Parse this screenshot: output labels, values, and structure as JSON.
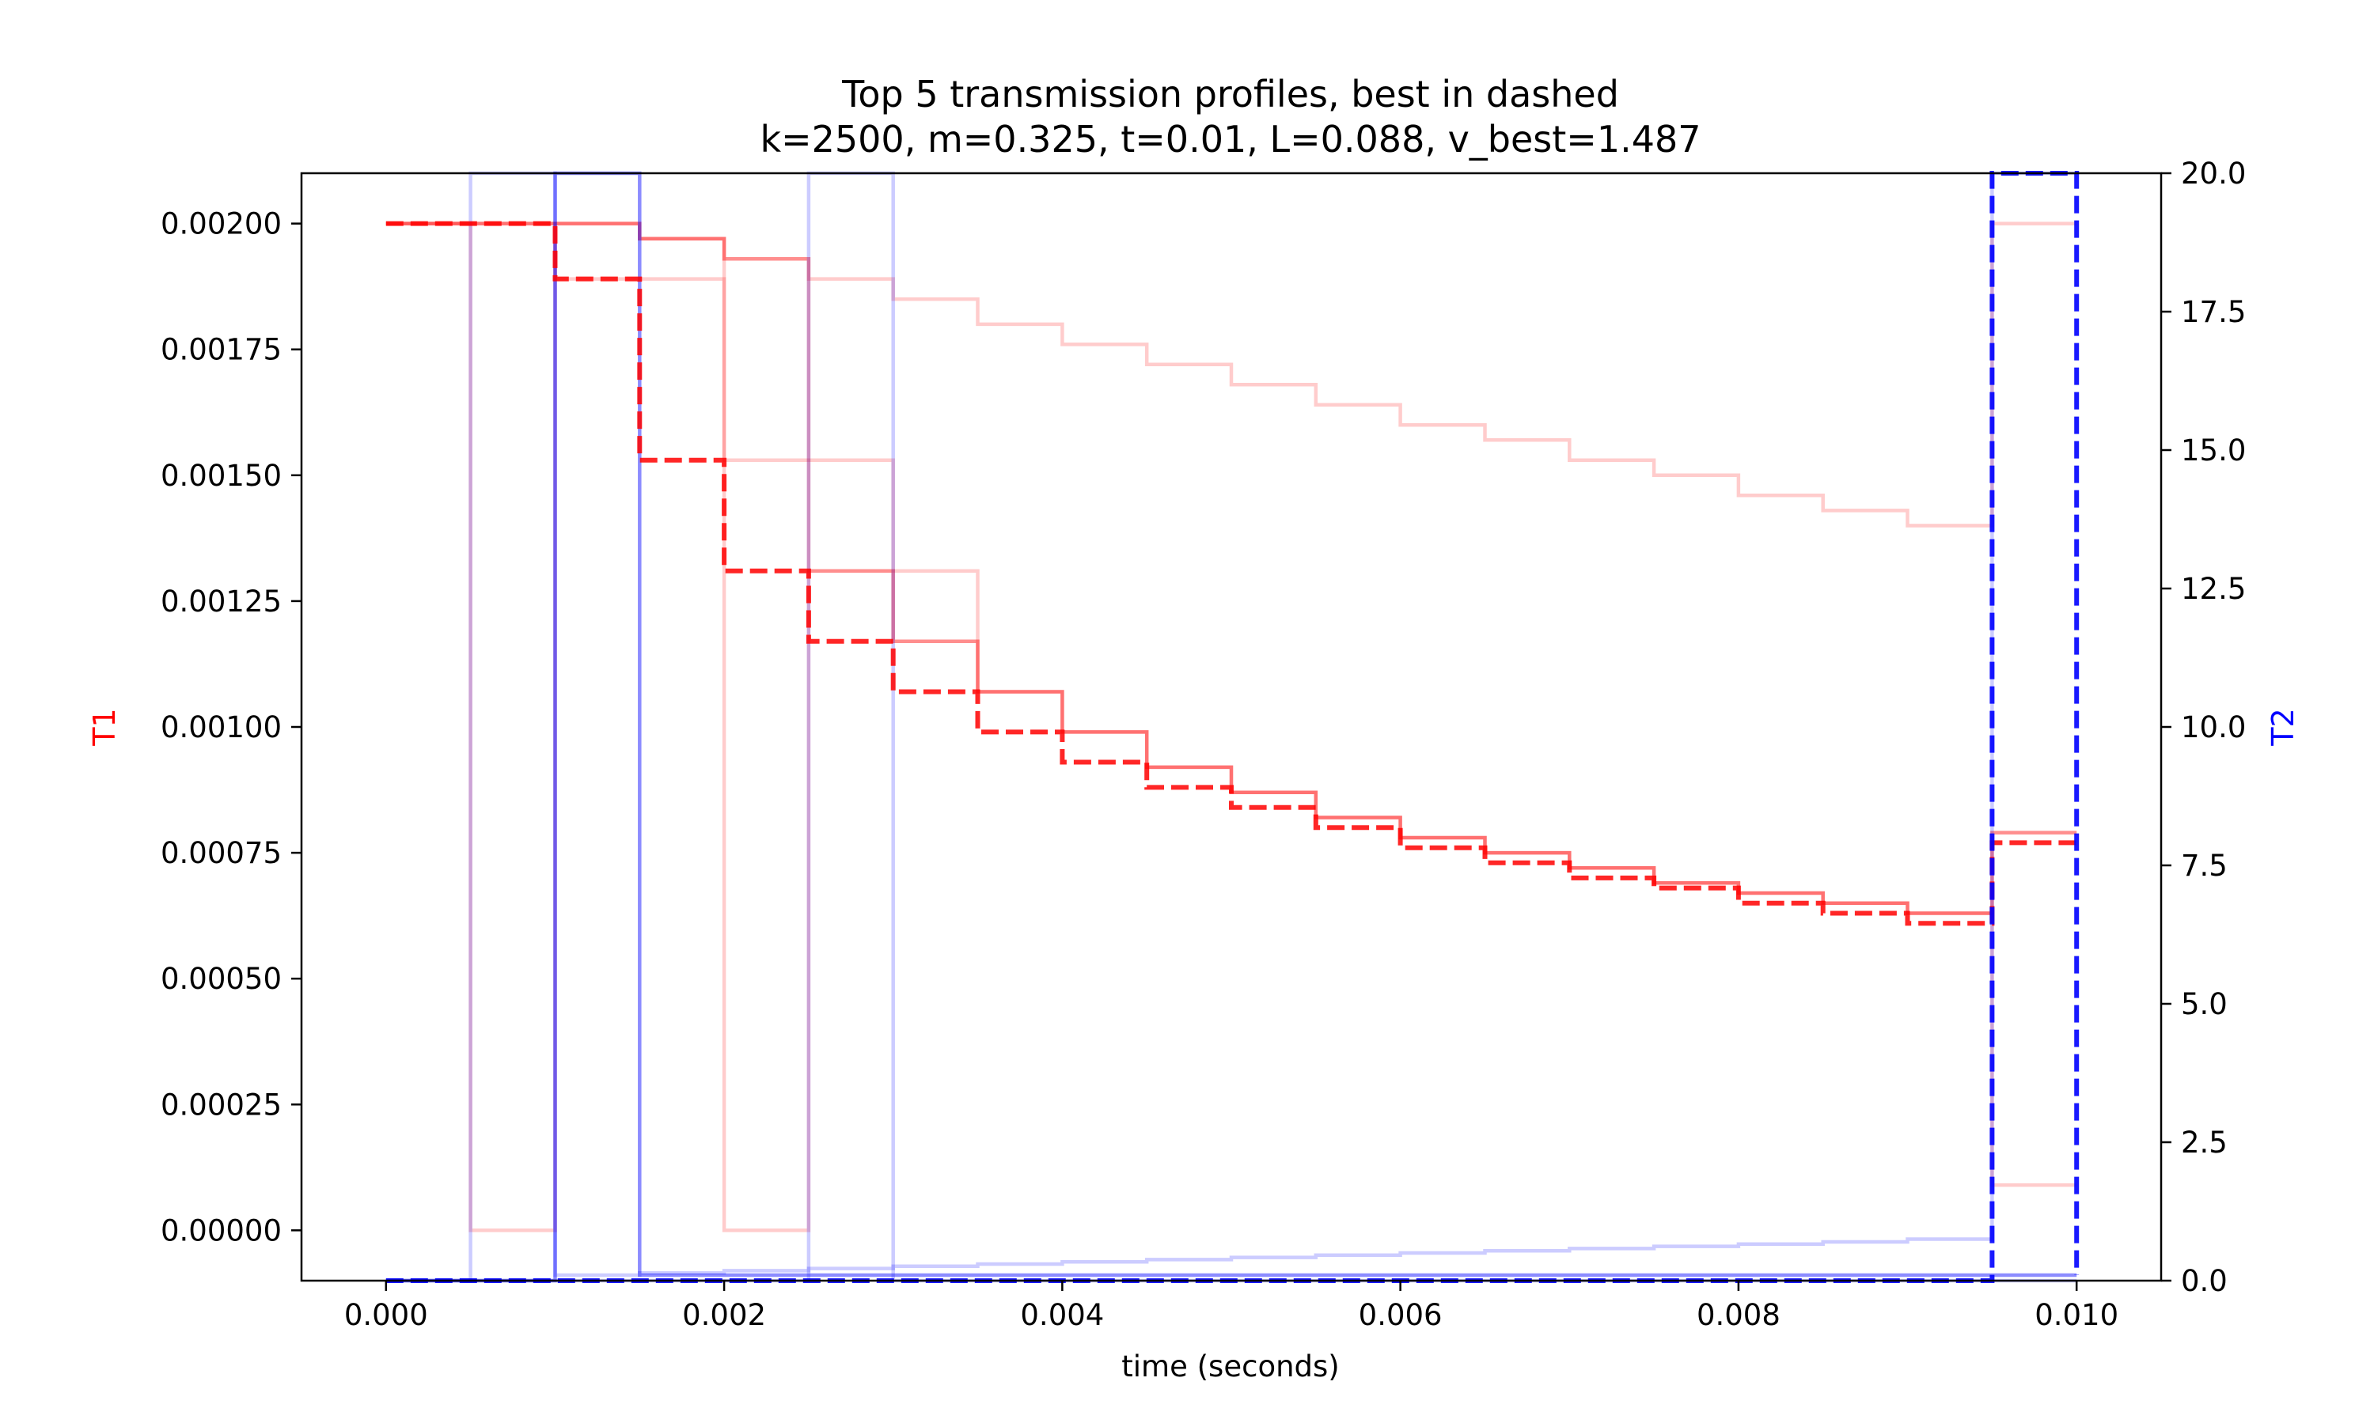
{
  "chart_data": {
    "type": "line",
    "title": "Top 5 transmission profiles, best in dashed",
    "subtitle": "k=2500, m=0.325, t=0.01, L=0.088, v_best=1.487",
    "xlabel": "time (seconds)",
    "ylabel_left": "T1",
    "ylabel_right": "T2",
    "xlim": [
      -0.0005,
      0.0105
    ],
    "ylim_left": [
      -0.0001,
      0.0021
    ],
    "ylim_right": [
      0,
      20
    ],
    "x_ticks": [
      0.0,
      0.002,
      0.004,
      0.006,
      0.008,
      0.01
    ],
    "x_tick_labels": [
      "0.000",
      "0.002",
      "0.004",
      "0.006",
      "0.008",
      "0.010"
    ],
    "y_left_ticks": [
      0.0,
      0.00025,
      0.0005,
      0.00075,
      0.001,
      0.00125,
      0.0015,
      0.00175,
      0.002
    ],
    "y_left_tick_labels": [
      "0.00000",
      "0.00025",
      "0.00050",
      "0.00075",
      "0.00100",
      "0.00125",
      "0.00150",
      "0.00175",
      "0.00200"
    ],
    "y_right_ticks": [
      0,
      2.5,
      5,
      7.5,
      10,
      12.5,
      15,
      17.5,
      20
    ],
    "y_right_tick_labels": [
      "0.0",
      "2.5",
      "5.0",
      "7.5",
      "10.0",
      "12.5",
      "15.0",
      "17.5",
      "20.0"
    ],
    "grid": false,
    "colors": {
      "t1": "#ff0000",
      "t2": "#0000ff",
      "left_label": "#ff0000",
      "right_label": "#0000ff"
    },
    "series": [
      {
        "axis": "left",
        "kind": "T1 profile",
        "best": false,
        "alpha": 0.2,
        "x": [
          0,
          0.0005,
          0.001,
          0.0015,
          0.002,
          0.0025,
          0.003,
          0.0035,
          0.004,
          0.0045,
          0.005,
          0.0055,
          0.006,
          0.0065,
          0.007,
          0.0075,
          0.008,
          0.0085,
          0.009,
          0.0095,
          0.01
        ],
        "values": [
          0.002,
          0.002,
          0.002,
          0.00197,
          0.00193,
          0.00189,
          0.00185,
          0.0018,
          0.00176,
          0.00172,
          0.00168,
          0.00164,
          0.0016,
          0.00157,
          0.00153,
          0.0015,
          0.00146,
          0.00143,
          0.0014,
          0.002,
          0.002
        ]
      },
      {
        "axis": "left",
        "kind": "T1 profile",
        "best": false,
        "alpha": 0.2,
        "x": [
          0,
          0.0005,
          0.001,
          0.0015,
          0.002,
          0.0025,
          0.003,
          0.0035,
          0.004,
          0.0045,
          0.005,
          0.0055,
          0.006,
          0.0065,
          0.007,
          0.0075,
          0.008,
          0.0085,
          0.009,
          0.0095,
          0.01
        ],
        "values": [
          0.002,
          0.002,
          0.00189,
          0.00189,
          0.00153,
          0.00153,
          0.00117,
          0.00107,
          0.00099,
          0.00092,
          0.00087,
          0.00082,
          0.00078,
          0.00075,
          0.00072,
          0.00069,
          0.00067,
          0.00065,
          0.00063,
          9e-05,
          9e-05
        ]
      },
      {
        "axis": "left",
        "kind": "T1 profile",
        "best": false,
        "alpha": 0.2,
        "x": [
          0,
          0.0005,
          0.001,
          0.0015,
          0.002,
          0.0025,
          0.003,
          0.0035,
          0.004,
          0.0045,
          0.005,
          0.0055,
          0.006,
          0.0065,
          0.007,
          0.0075,
          0.008,
          0.0085,
          0.009,
          0.0095,
          0.01
        ],
        "values": [
          0.002,
          0.0,
          0.002,
          0.00197,
          0.0,
          0.00131,
          0.00131,
          0.00107,
          0.00099,
          0.00092,
          0.00087,
          0.00082,
          0.00078,
          0.00075,
          0.00072,
          0.00069,
          0.00067,
          0.00065,
          0.00063,
          0.00079,
          0.00079
        ]
      },
      {
        "axis": "left",
        "kind": "T1 profile",
        "best": false,
        "alpha": 0.3,
        "x": [
          0,
          0.0005,
          0.001,
          0.0015,
          0.002,
          0.0025,
          0.003,
          0.0035,
          0.004,
          0.0045,
          0.005,
          0.0055,
          0.006,
          0.0065,
          0.007,
          0.0075,
          0.008,
          0.0085,
          0.009,
          0.0095,
          0.01
        ],
        "values": [
          0.002,
          0.002,
          0.002,
          0.00197,
          0.00193,
          0.00131,
          0.00117,
          0.00107,
          0.00099,
          0.00092,
          0.00087,
          0.00082,
          0.00078,
          0.00075,
          0.00072,
          0.00069,
          0.00067,
          0.00065,
          0.00063,
          0.00079,
          0.00079
        ]
      },
      {
        "axis": "left",
        "kind": "T1 profile",
        "best": true,
        "alpha": 0.85,
        "x": [
          0,
          0.0005,
          0.001,
          0.0015,
          0.002,
          0.0025,
          0.003,
          0.0035,
          0.004,
          0.0045,
          0.005,
          0.0055,
          0.006,
          0.0065,
          0.007,
          0.0075,
          0.008,
          0.0085,
          0.009,
          0.0095,
          0.01
        ],
        "values": [
          0.002,
          0.002,
          0.00189,
          0.00153,
          0.00131,
          0.00117,
          0.00107,
          0.00099,
          0.00093,
          0.00088,
          0.00084,
          0.0008,
          0.00076,
          0.00073,
          0.0007,
          0.00068,
          0.00065,
          0.00063,
          0.00061,
          0.00077,
          0.00077
        ]
      },
      {
        "axis": "right",
        "kind": "T2 profile",
        "best": false,
        "alpha": 0.2,
        "x": [
          0,
          0.0005,
          0.001,
          0.0015,
          0.002,
          0.0025,
          0.003,
          0.0035,
          0.004,
          0.0045,
          0.005,
          0.0055,
          0.006,
          0.0065,
          0.007,
          0.0075,
          0.008,
          0.0085,
          0.009,
          0.0095,
          0.01
        ],
        "values": [
          0,
          20,
          0.1,
          0.14,
          0.18,
          0.22,
          0.26,
          0.3,
          0.34,
          0.38,
          0.42,
          0.46,
          0.5,
          0.54,
          0.58,
          0.62,
          0.66,
          0.7,
          0.75,
          20,
          20
        ]
      },
      {
        "axis": "right",
        "kind": "T2 profile",
        "best": false,
        "alpha": 0.2,
        "x": [
          0,
          0.0005,
          0.001,
          0.0015,
          0.002,
          0.0025,
          0.003,
          0.0035,
          0.004,
          0.0045,
          0.005,
          0.0055,
          0.006,
          0.0065,
          0.007,
          0.0075,
          0.008,
          0.0085,
          0.009,
          0.0095,
          0.01
        ],
        "values": [
          0,
          0,
          0,
          0,
          0,
          20,
          0,
          0,
          0,
          0,
          0,
          0,
          0,
          0,
          0,
          0,
          0,
          0,
          0,
          0,
          0
        ]
      },
      {
        "axis": "right",
        "kind": "T2 profile",
        "best": false,
        "alpha": 0.45,
        "x": [
          0,
          0.0005,
          0.001,
          0.0015,
          0.002,
          0.0025,
          0.003,
          0.0035,
          0.004,
          0.0045,
          0.005,
          0.0055,
          0.006,
          0.0065,
          0.007,
          0.0075,
          0.008,
          0.0085,
          0.009,
          0.0095,
          0.01
        ],
        "values": [
          0,
          0,
          20,
          0.1,
          0.1,
          0.1,
          0.1,
          0.1,
          0.1,
          0.1,
          0.1,
          0.1,
          0.1,
          0.1,
          0.1,
          0.1,
          0.1,
          0.1,
          0.1,
          0.1,
          0.1
        ]
      },
      {
        "axis": "right",
        "kind": "T2 profile",
        "best": true,
        "alpha": 0.9,
        "x": [
          0,
          0.0005,
          0.001,
          0.0015,
          0.002,
          0.0025,
          0.003,
          0.0035,
          0.004,
          0.0045,
          0.005,
          0.0055,
          0.006,
          0.0065,
          0.007,
          0.0075,
          0.008,
          0.0085,
          0.009,
          0.0095,
          0.01
        ],
        "values": [
          0,
          0,
          0,
          0,
          0,
          0,
          0,
          0,
          0,
          0,
          0,
          0,
          0,
          0,
          0,
          0,
          0,
          0,
          0,
          20,
          0.1
        ]
      }
    ]
  }
}
